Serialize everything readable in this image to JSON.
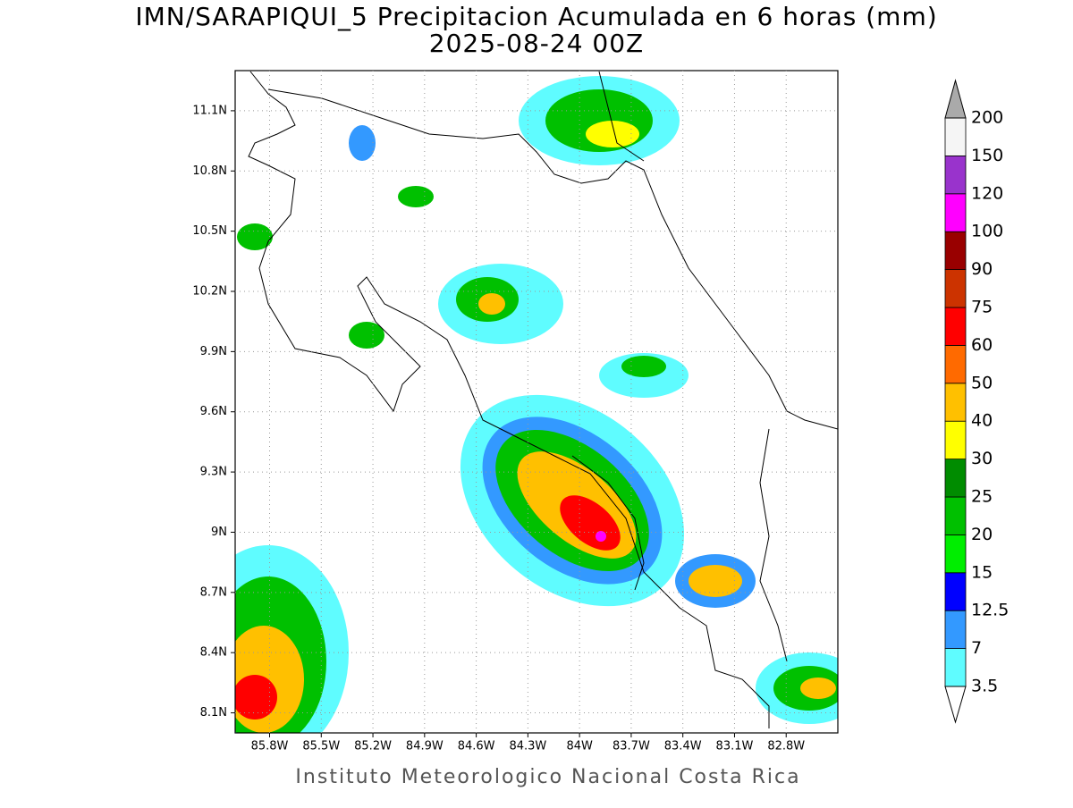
{
  "header": {
    "title": "IMN/SARAPIQUI_5 Precipitacion Acumulada en 6 horas (mm)",
    "subtitle": "2025-08-24 00Z"
  },
  "map": {
    "lonlim": [
      -86.0,
      -82.5
    ],
    "latlim": [
      8.0,
      11.3
    ],
    "grid": true,
    "lon_ticks": [
      {
        "value": -85.8,
        "label": "85.8W"
      },
      {
        "value": -85.5,
        "label": "85.5W"
      },
      {
        "value": -85.2,
        "label": "85.2W"
      },
      {
        "value": -84.9,
        "label": "84.9W"
      },
      {
        "value": -84.6,
        "label": "84.6W"
      },
      {
        "value": -84.3,
        "label": "84.3W"
      },
      {
        "value": -84.0,
        "label": "84W"
      },
      {
        "value": -83.7,
        "label": "83.7W"
      },
      {
        "value": -83.4,
        "label": "83.4W"
      },
      {
        "value": -83.1,
        "label": "83.1W"
      },
      {
        "value": -82.8,
        "label": "82.8W"
      }
    ],
    "lat_ticks": [
      {
        "value": 8.1,
        "label": "8.1N"
      },
      {
        "value": 8.4,
        "label": "8.4N"
      },
      {
        "value": 8.7,
        "label": "8.7N"
      },
      {
        "value": 9.0,
        "label": "9N"
      },
      {
        "value": 9.3,
        "label": "9.3N"
      },
      {
        "value": 9.6,
        "label": "9.6N"
      },
      {
        "value": 9.9,
        "label": "9.9N"
      },
      {
        "value": 10.2,
        "label": "10.2N"
      },
      {
        "value": 10.5,
        "label": "10.5N"
      },
      {
        "value": 10.8,
        "label": "10.8N"
      },
      {
        "value": 11.1,
        "label": "11.1N"
      }
    ]
  },
  "colorbar": {
    "levels": [
      3.5,
      7,
      12.5,
      15,
      20,
      25,
      30,
      40,
      50,
      60,
      75,
      90,
      100,
      120,
      150,
      200
    ],
    "colors": [
      "#5ffcff",
      "#3399ff",
      "#0000ff",
      "#00ee00",
      "#00c000",
      "#008c00",
      "#ffff00",
      "#ffc000",
      "#ff6a00",
      "#ff0000",
      "#cc3300",
      "#990000",
      "#ff00ff",
      "#9933cc",
      "#f5f5f5"
    ],
    "under_color": "#ffffff",
    "over_color": "#aaaaaa"
  },
  "footer": "Instituto Meteorologico Nacional Costa Rica"
}
